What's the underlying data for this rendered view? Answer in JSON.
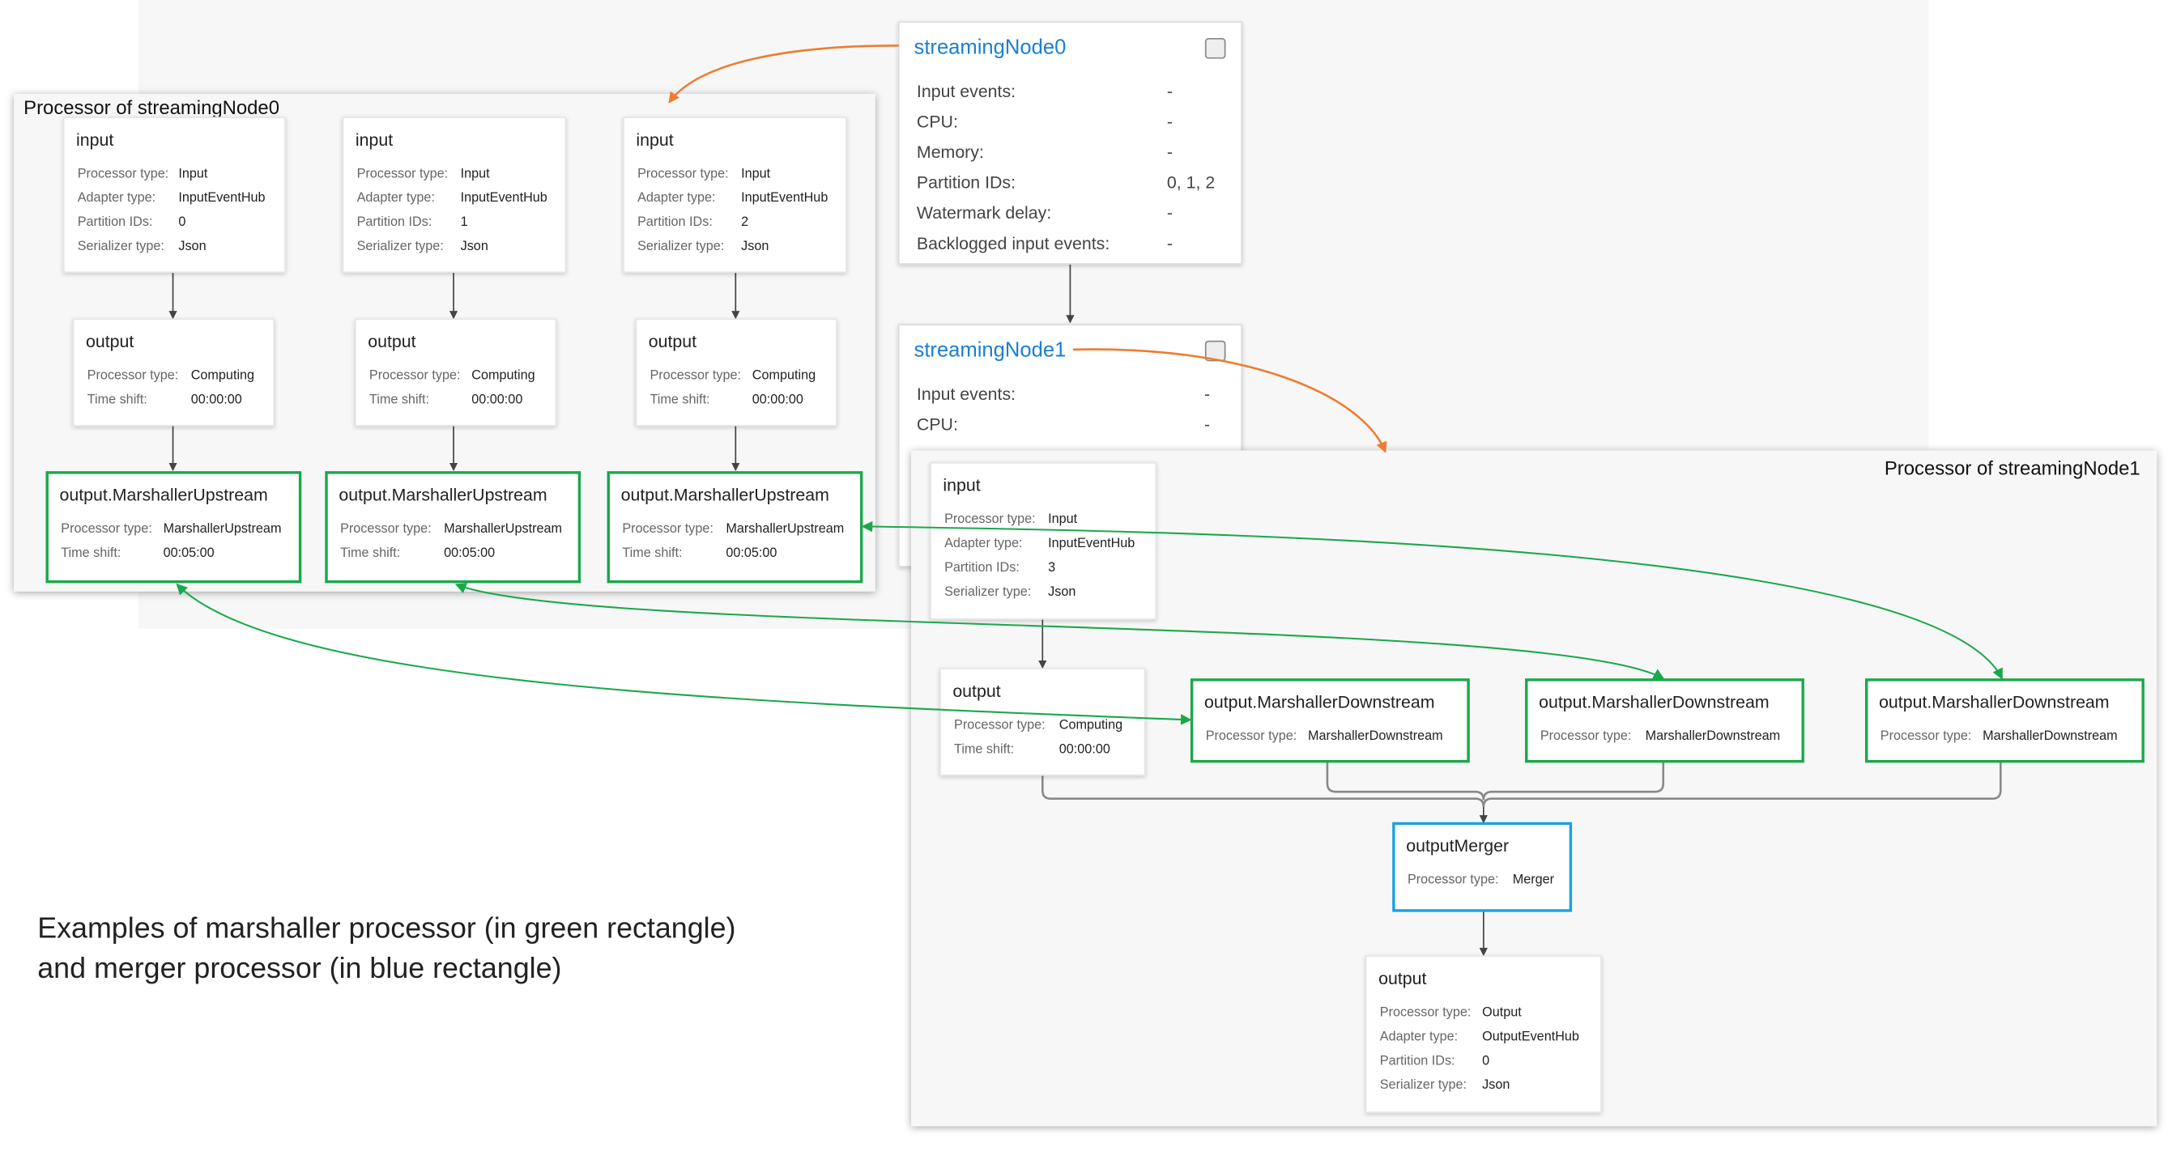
{
  "streaming_nodes": [
    {
      "title": "streamingNode0",
      "rows": [
        {
          "label": "Input events:",
          "value": "-"
        },
        {
          "label": "CPU:",
          "value": "-"
        },
        {
          "label": "Memory:",
          "value": "-"
        },
        {
          "label": "Partition IDs:",
          "value": "0, 1, 2"
        },
        {
          "label": "Watermark delay:",
          "value": "-"
        },
        {
          "label": "Backlogged input events:",
          "value": "-"
        }
      ]
    },
    {
      "title": "streamingNode1",
      "rows": [
        {
          "label": "Input events:",
          "value": "-"
        },
        {
          "label": "CPU:",
          "value": "-"
        }
      ]
    }
  ],
  "processors": [
    {
      "title": "Processor of streamingNode0",
      "nodes": [
        {
          "title": "input",
          "rows": [
            {
              "label": "Processor type:",
              "value": "Input"
            },
            {
              "label": "Adapter type:",
              "value": "InputEventHub"
            },
            {
              "label": "Partition IDs:",
              "value": "0"
            },
            {
              "label": "Serializer type:",
              "value": "Json"
            }
          ]
        },
        {
          "title": "input",
          "rows": [
            {
              "label": "Processor type:",
              "value": "Input"
            },
            {
              "label": "Adapter type:",
              "value": "InputEventHub"
            },
            {
              "label": "Partition IDs:",
              "value": "1"
            },
            {
              "label": "Serializer type:",
              "value": "Json"
            }
          ]
        },
        {
          "title": "input",
          "rows": [
            {
              "label": "Processor type:",
              "value": "Input"
            },
            {
              "label": "Adapter type:",
              "value": "InputEventHub"
            },
            {
              "label": "Partition IDs:",
              "value": "2"
            },
            {
              "label": "Serializer type:",
              "value": "Json"
            }
          ]
        },
        {
          "title": "output",
          "rows": [
            {
              "label": "Processor type:",
              "value": "Computing"
            },
            {
              "label": "Time shift:",
              "value": "00:00:00"
            }
          ]
        },
        {
          "title": "output",
          "rows": [
            {
              "label": "Processor type:",
              "value": "Computing"
            },
            {
              "label": "Time shift:",
              "value": "00:00:00"
            }
          ]
        },
        {
          "title": "output",
          "rows": [
            {
              "label": "Processor type:",
              "value": "Computing"
            },
            {
              "label": "Time shift:",
              "value": "00:00:00"
            }
          ]
        },
        {
          "title": "output.MarshallerUpstream",
          "rows": [
            {
              "label": "Processor type:",
              "value": "MarshallerUpstream"
            },
            {
              "label": "Time shift:",
              "value": "00:05:00"
            }
          ]
        },
        {
          "title": "output.MarshallerUpstream",
          "rows": [
            {
              "label": "Processor type:",
              "value": "MarshallerUpstream"
            },
            {
              "label": "Time shift:",
              "value": "00:05:00"
            }
          ]
        },
        {
          "title": "output.MarshallerUpstream",
          "rows": [
            {
              "label": "Processor type:",
              "value": "MarshallerUpstream"
            },
            {
              "label": "Time shift:",
              "value": "00:05:00"
            }
          ]
        }
      ]
    },
    {
      "title": "Processor of streamingNode1",
      "nodes": [
        {
          "title": "input",
          "rows": [
            {
              "label": "Processor type:",
              "value": "Input"
            },
            {
              "label": "Adapter type:",
              "value": "InputEventHub"
            },
            {
              "label": "Partition IDs:",
              "value": "3"
            },
            {
              "label": "Serializer type:",
              "value": "Json"
            }
          ]
        },
        {
          "title": "output",
          "rows": [
            {
              "label": "Processor type:",
              "value": "Computing"
            },
            {
              "label": "Time shift:",
              "value": "00:00:00"
            }
          ]
        },
        {
          "title": "output.MarshallerDownstream",
          "rows": [
            {
              "label": "Processor type:",
              "value": "MarshallerDownstream"
            }
          ]
        },
        {
          "title": "output.MarshallerDownstream",
          "rows": [
            {
              "label": "Processor type:",
              "value": "MarshallerDownstream"
            }
          ]
        },
        {
          "title": "output.MarshallerDownstream",
          "rows": [
            {
              "label": "Processor type:",
              "value": "MarshallerDownstream"
            }
          ]
        },
        {
          "title": "outputMerger",
          "rows": [
            {
              "label": "Processor type:",
              "value": "Merger"
            }
          ]
        },
        {
          "title": "output",
          "rows": [
            {
              "label": "Processor type:",
              "value": "Output"
            },
            {
              "label": "Adapter type:",
              "value": "OutputEventHub"
            },
            {
              "label": "Partition IDs:",
              "value": "0"
            },
            {
              "label": "Serializer type:",
              "value": "Json"
            }
          ]
        }
      ]
    }
  ],
  "caption": [
    "Examples of marshaller processor (in green rectangle)",
    "and merger processor (in blue rectangle)"
  ]
}
